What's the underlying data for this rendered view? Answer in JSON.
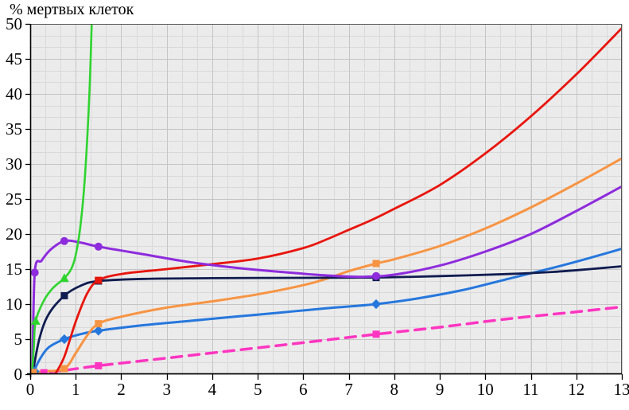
{
  "chart_data": {
    "type": "line",
    "title": "",
    "xlabel": "",
    "ylabel": "% мертвых клеток",
    "xlim": [
      0,
      13
    ],
    "ylim": [
      0,
      50
    ],
    "x_ticks": [
      0,
      1,
      2,
      3,
      4,
      5,
      6,
      7,
      8,
      9,
      10,
      11,
      12,
      13
    ],
    "y_ticks": [
      0,
      5,
      10,
      15,
      20,
      25,
      30,
      35,
      40,
      45,
      50
    ],
    "x_minor_step": 0.3333,
    "y_minor_step": 1.6667,
    "grid": true,
    "legend": "none",
    "plot_bg": "#ebebeb",
    "grid_minor_color": "#d9d9d9",
    "grid_major_color": "#c5c5c5",
    "border_color": "#555555",
    "axis_color": "#000000",
    "tick_label_color": "#000000",
    "series": [
      {
        "name": "pink-dashed",
        "color": "#ff35c1",
        "width": 3.5,
        "dash": "13 9",
        "marker": {
          "shape": "square",
          "size": 9,
          "points": [
            [
              0.3,
              0.2
            ],
            [
              1.5,
              1.2
            ],
            [
              7.6,
              5.7
            ]
          ]
        },
        "points": [
          [
            0.05,
            0.05
          ],
          [
            0.75,
            0.55
          ],
          [
            1.5,
            1.2
          ],
          [
            3,
            2.3
          ],
          [
            4.5,
            3.4
          ],
          [
            6,
            4.5
          ],
          [
            7.6,
            5.7
          ],
          [
            9,
            6.7
          ],
          [
            10.5,
            7.9
          ],
          [
            12,
            8.9
          ],
          [
            13,
            9.6
          ]
        ]
      },
      {
        "name": "blue",
        "color": "#2677dd",
        "width": 3,
        "dash": "",
        "marker": {
          "shape": "diamond",
          "size": 9,
          "points": [
            [
              0.1,
              0.4
            ],
            [
              0.75,
              5.0
            ],
            [
              1.5,
              6.2
            ],
            [
              7.6,
              10.0
            ]
          ]
        },
        "points": [
          [
            0.05,
            0
          ],
          [
            0.2,
            2.0
          ],
          [
            0.4,
            3.8
          ],
          [
            0.75,
            5.0
          ],
          [
            1.1,
            5.7
          ],
          [
            1.5,
            6.2
          ],
          [
            2.5,
            7.0
          ],
          [
            3.5,
            7.6
          ],
          [
            4.5,
            8.2
          ],
          [
            5.5,
            8.8
          ],
          [
            6.5,
            9.4
          ],
          [
            7.6,
            10.0
          ],
          [
            8.5,
            10.8
          ],
          [
            9.5,
            12.0
          ],
          [
            10.5,
            13.6
          ],
          [
            11.5,
            15.2
          ],
          [
            12.3,
            16.6
          ],
          [
            13,
            17.9
          ]
        ]
      },
      {
        "name": "orange",
        "color": "#f79443",
        "width": 3,
        "dash": "",
        "marker": {
          "shape": "square",
          "size": 9,
          "points": [
            [
              0.07,
              0.25
            ],
            [
              0.75,
              0.8
            ],
            [
              1.5,
              7.2
            ],
            [
              7.6,
              15.8
            ]
          ]
        },
        "points": [
          [
            0.05,
            0.2
          ],
          [
            0.3,
            0.4
          ],
          [
            0.75,
            0.8
          ],
          [
            1.0,
            3.0
          ],
          [
            1.25,
            5.5
          ],
          [
            1.5,
            7.2
          ],
          [
            2,
            8.2
          ],
          [
            3,
            9.5
          ],
          [
            4,
            10.4
          ],
          [
            5,
            11.4
          ],
          [
            6,
            12.7
          ],
          [
            6.5,
            13.6
          ],
          [
            7,
            14.7
          ],
          [
            7.6,
            15.8
          ],
          [
            8,
            16.4
          ],
          [
            9,
            18.3
          ],
          [
            10,
            20.8
          ],
          [
            11,
            23.8
          ],
          [
            12,
            27.2
          ],
          [
            13,
            30.8
          ]
        ]
      },
      {
        "name": "navy",
        "color": "#101c50",
        "width": 2.8,
        "dash": "",
        "marker": {
          "shape": "square",
          "size": 9,
          "points": [
            [
              0.75,
              11.2
            ],
            [
              1.5,
              13.3
            ],
            [
              7.6,
              13.8
            ]
          ]
        },
        "points": [
          [
            0.05,
            0
          ],
          [
            0.2,
            5.0
          ],
          [
            0.4,
            8.5
          ],
          [
            0.75,
            11.2
          ],
          [
            1.1,
            12.6
          ],
          [
            1.5,
            13.3
          ],
          [
            2.5,
            13.6
          ],
          [
            4,
            13.7
          ],
          [
            6,
            13.75
          ],
          [
            7.6,
            13.8
          ],
          [
            9,
            14.0
          ],
          [
            10.5,
            14.3
          ],
          [
            11.5,
            14.6
          ],
          [
            12.3,
            15.0
          ],
          [
            13,
            15.4
          ]
        ]
      },
      {
        "name": "red",
        "color": "#e8150d",
        "width": 2.8,
        "dash": "",
        "marker": {
          "shape": "square",
          "size": 9,
          "points": [
            [
              1.5,
              13.4
            ]
          ]
        },
        "points": [
          [
            0.55,
            0
          ],
          [
            0.75,
            2.5
          ],
          [
            1.0,
            7.5
          ],
          [
            1.25,
            11.5
          ],
          [
            1.5,
            13.4
          ],
          [
            2,
            14.3
          ],
          [
            3,
            15.0
          ],
          [
            4,
            15.7
          ],
          [
            5,
            16.5
          ],
          [
            6,
            18.0
          ],
          [
            6.5,
            19.2
          ],
          [
            7,
            20.6
          ],
          [
            7.5,
            22.0
          ],
          [
            8,
            23.6
          ],
          [
            9,
            27.0
          ],
          [
            10,
            31.5
          ],
          [
            11,
            36.8
          ],
          [
            12,
            42.8
          ],
          [
            13,
            49.4
          ]
        ]
      },
      {
        "name": "purple",
        "color": "#8e2bdd",
        "width": 3,
        "dash": "",
        "marker": {
          "shape": "circle",
          "size": 10,
          "points": [
            [
              0.1,
              14.5
            ],
            [
              0.75,
              19.0
            ],
            [
              1.5,
              18.2
            ],
            [
              7.6,
              14.0
            ]
          ]
        },
        "points": [
          [
            0.05,
            0
          ],
          [
            0.1,
            14.5
          ],
          [
            0.25,
            16.2
          ],
          [
            0.45,
            17.8
          ],
          [
            0.75,
            19.0
          ],
          [
            1.1,
            18.8
          ],
          [
            1.5,
            18.2
          ],
          [
            2.5,
            17.1
          ],
          [
            3.5,
            16.0
          ],
          [
            4.5,
            15.2
          ],
          [
            5.5,
            14.6
          ],
          [
            6.5,
            14.1
          ],
          [
            7.3,
            13.9
          ],
          [
            8,
            14.2
          ],
          [
            9,
            15.5
          ],
          [
            10,
            17.5
          ],
          [
            11,
            20.0
          ],
          [
            12,
            23.3
          ],
          [
            13,
            26.8
          ]
        ]
      },
      {
        "name": "green",
        "color": "#2fd42f",
        "width": 2.6,
        "dash": "",
        "marker": {
          "shape": "triangle",
          "size": 10,
          "points": [
            [
              0.12,
              7.6
            ],
            [
              0.75,
              13.7
            ]
          ]
        },
        "points": [
          [
            0.04,
            0
          ],
          [
            0.08,
            4.0
          ],
          [
            0.12,
            7.6
          ],
          [
            0.3,
            10.5
          ],
          [
            0.5,
            12.3
          ],
          [
            0.75,
            13.7
          ],
          [
            0.9,
            15.0
          ],
          [
            1.0,
            17.0
          ],
          [
            1.1,
            21.0
          ],
          [
            1.2,
            28.0
          ],
          [
            1.3,
            40.0
          ],
          [
            1.36,
            52.0
          ]
        ]
      }
    ]
  }
}
